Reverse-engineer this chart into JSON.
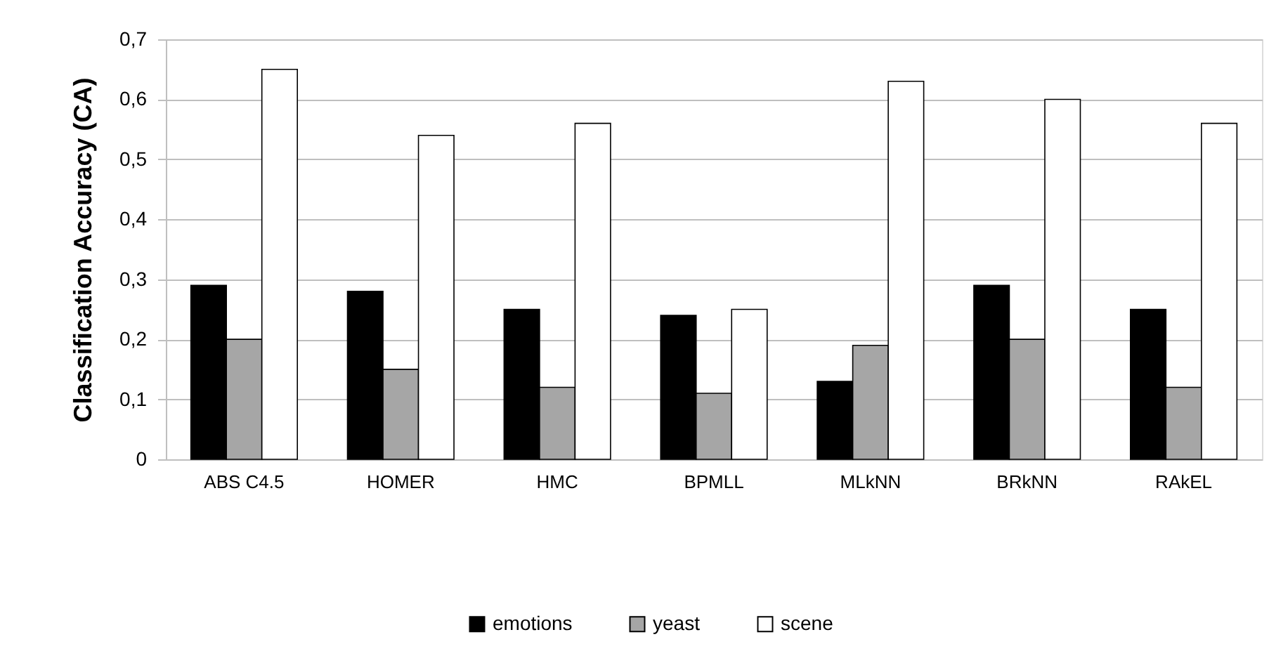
{
  "chart_data": {
    "type": "bar",
    "ylabel": "Classification Accuracy (CA)",
    "categories": [
      "ABS C4.5",
      "HOMER",
      "HMC",
      "BPMLL",
      "MLkNN",
      "BRkNN",
      "RAkEL"
    ],
    "series": [
      {
        "name": "emotions",
        "color": "#000000",
        "values": [
          0.29,
          0.28,
          0.25,
          0.24,
          0.13,
          0.29,
          0.25
        ]
      },
      {
        "name": "yeast",
        "color": "#a6a6a6",
        "values": [
          0.2,
          0.15,
          0.12,
          0.11,
          0.19,
          0.2,
          0.12
        ]
      },
      {
        "name": "scene",
        "color": "#ffffff",
        "values": [
          0.65,
          0.54,
          0.56,
          0.25,
          0.63,
          0.6,
          0.56
        ]
      }
    ],
    "ylim": [
      0,
      0.7
    ],
    "yticks": [
      0,
      {
        "value": 0.1,
        "label": "0,1"
      },
      {
        "value": 0.2,
        "label": "0,2"
      },
      {
        "value": 0.3,
        "label": "0,3"
      },
      {
        "value": 0.4,
        "label": "0,4"
      },
      {
        "value": 0.5,
        "label": "0,5"
      },
      {
        "value": 0.6,
        "label": "0,6"
      },
      {
        "value": 0.7,
        "label": "0,7"
      }
    ],
    "grid": "y",
    "legend": "bottom"
  }
}
